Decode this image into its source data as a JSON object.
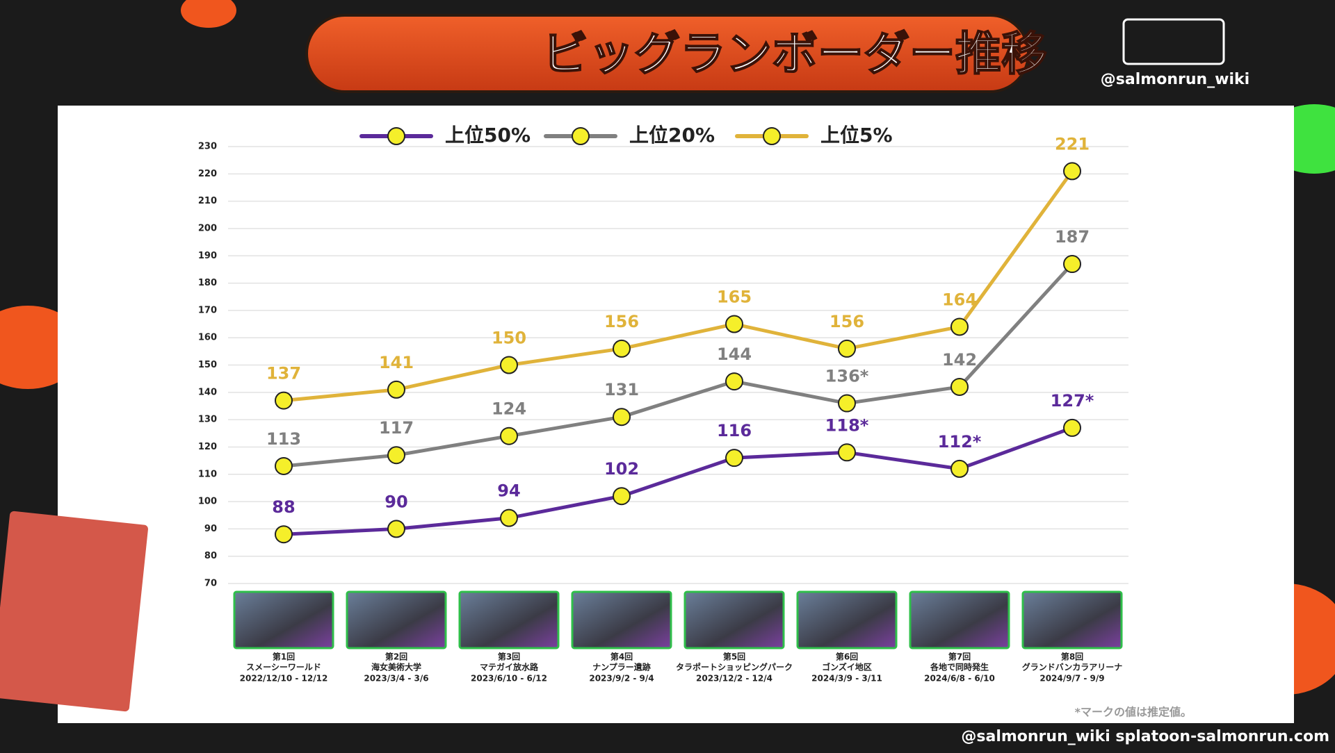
{
  "header": {
    "title": "ビッグランボーダー推移",
    "account": "@salmonrun_wiki"
  },
  "chart_data": {
    "type": "line",
    "categories": [
      "第1回",
      "第2回",
      "第3回",
      "第4回",
      "第5回",
      "第6回",
      "第7回",
      "第8回"
    ],
    "stages": [
      "スメーシーワールド",
      "海女美術大学",
      "マテガイ放水路",
      "ナンプラー遺跡",
      "タラポートショッピングパーク",
      "ゴンズイ地区",
      "各地で同時発生",
      "グランドバンカラアリーナ"
    ],
    "dates": [
      "2022/12/10 - 12/12",
      "2023/3/4 - 3/6",
      "2023/6/10 - 6/12",
      "2023/9/2 - 9/4",
      "2023/12/2 - 12/4",
      "2024/3/9 - 3/11",
      "2024/6/8 - 6/10",
      "2024/9/7 - 9/9"
    ],
    "series": [
      {
        "name": "上位50%",
        "color": "#5b2a9a",
        "values": [
          88,
          90,
          94,
          102,
          116,
          118,
          112,
          127
        ],
        "value_labels": [
          "88",
          "90",
          "94",
          "102",
          "116",
          "118*",
          "112*",
          "127*"
        ]
      },
      {
        "name": "上位20%",
        "color": "#808080",
        "values": [
          113,
          117,
          124,
          131,
          144,
          136,
          142,
          187
        ],
        "value_labels": [
          "113",
          "117",
          "124",
          "131",
          "144",
          "136*",
          "142",
          "187"
        ]
      },
      {
        "name": "上位5%",
        "color": "#e0b33a",
        "values": [
          137,
          141,
          150,
          156,
          165,
          156,
          164,
          221
        ]
      }
    ],
    "ylim": [
      70,
      230
    ],
    "yticks": [
      70,
      80,
      90,
      100,
      110,
      120,
      130,
      140,
      150,
      160,
      170,
      180,
      190,
      200,
      210,
      220,
      230
    ],
    "grid": true,
    "legend": "top",
    "footnote": "*マークの値は推定値。"
  },
  "footer": "@salmonrun_wiki splatoon-salmonrun.com"
}
